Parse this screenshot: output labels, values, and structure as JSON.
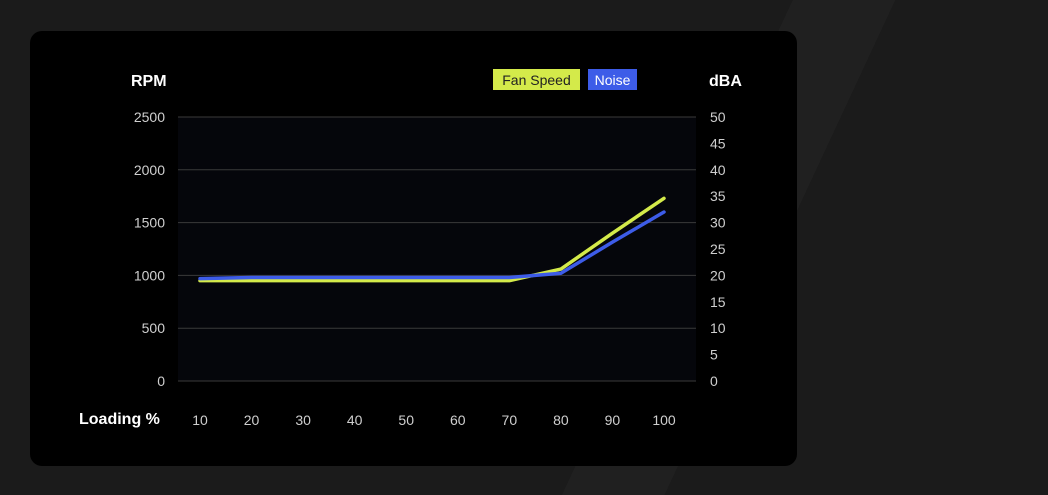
{
  "chart_data": {
    "type": "line",
    "y_left_label": "RPM",
    "y_right_label": "dBA",
    "xlabel": "Loading %",
    "categories": [
      10,
      20,
      30,
      40,
      50,
      60,
      70,
      80,
      90,
      100
    ],
    "y_left_ticks": [
      0,
      500,
      1000,
      1500,
      2000,
      2500
    ],
    "y_right_ticks": [
      0,
      5,
      10,
      15,
      20,
      25,
      30,
      35,
      40,
      45,
      50
    ],
    "ylim_left": [
      0,
      2500
    ],
    "ylim_right": [
      0,
      50
    ],
    "grid": true,
    "legend_position": "top-right",
    "series": [
      {
        "name": "Fan Speed",
        "axis": "left",
        "color": "#d4ea4a",
        "values": [
          950,
          950,
          950,
          950,
          950,
          950,
          950,
          1060,
          1400,
          1730
        ]
      },
      {
        "name": "Noise",
        "axis": "right",
        "color": "#3d5ce8",
        "values": [
          19.4,
          19.6,
          19.6,
          19.6,
          19.6,
          19.6,
          19.6,
          20.4,
          26.3,
          32
        ]
      }
    ]
  }
}
